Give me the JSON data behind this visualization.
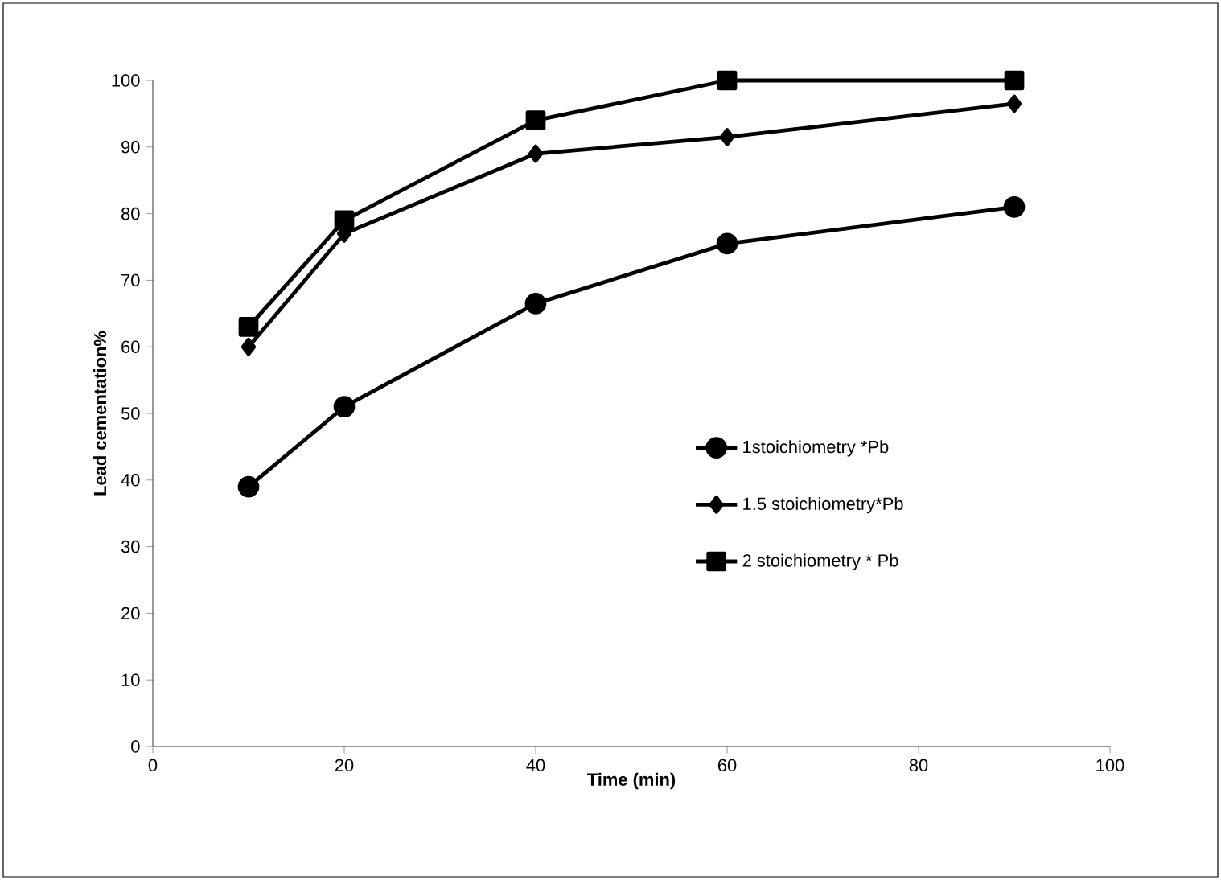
{
  "chart_data": {
    "type": "line",
    "xlabel": "Time (min)",
    "ylabel": "Lead cementation%",
    "xlim": [
      0,
      100
    ],
    "xticks": [
      0,
      20,
      40,
      60,
      80,
      100
    ],
    "ylim": [
      0,
      100
    ],
    "yticks": [
      0,
      10,
      20,
      30,
      40,
      50,
      60,
      70,
      80,
      90,
      100
    ],
    "grid": false,
    "legend": "right",
    "line_style": "solid",
    "series": [
      {
        "name": "1stoichiometry *Pb",
        "color": "#000000",
        "marker": "circle",
        "x": [
          10,
          20,
          40,
          60,
          90
        ],
        "values": [
          39,
          51,
          66.5,
          75.5,
          81
        ]
      },
      {
        "name": "1.5 stoichiometry*Pb",
        "color": "#000000",
        "marker": "diamond",
        "x": [
          10,
          20,
          40,
          60,
          90
        ],
        "values": [
          60,
          77,
          89,
          91.5,
          96.5
        ]
      },
      {
        "name": "2 stoichiometry * Pb",
        "color": "#000000",
        "marker": "square",
        "x": [
          10,
          20,
          40,
          60,
          90
        ],
        "values": [
          63,
          79,
          94,
          100,
          100
        ]
      }
    ]
  }
}
